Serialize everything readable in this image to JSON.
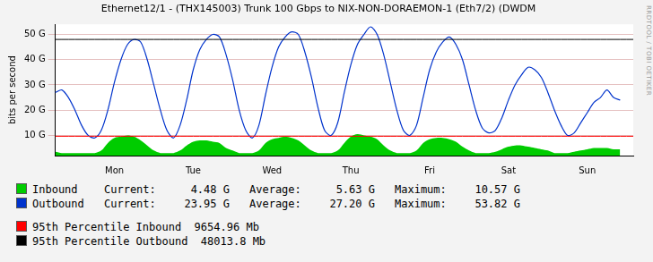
{
  "chart_data": {
    "type": "line",
    "title": "Ethernet12/1 - (THX145003) Trunk 100 Gbps to NIX-NON-DORAEMON-1 (Eth7/2) (DWDM",
    "y_label": "bits per second",
    "watermark": "RRDTOOL / TOBI OETIKER",
    "categories": [
      null,
      null,
      null,
      null,
      null,
      null,
      null,
      null,
      null,
      "Mon",
      null,
      null,
      null,
      null,
      null,
      null,
      null,
      null,
      null,
      null,
      null,
      "Tue",
      null,
      null,
      null,
      null,
      null,
      null,
      null,
      null,
      null,
      null,
      null,
      "Wed",
      null,
      null,
      null,
      null,
      null,
      null,
      null,
      null,
      null,
      null,
      null,
      "Thu",
      null,
      null,
      null,
      null,
      null,
      null,
      null,
      null,
      null,
      null,
      null,
      "Fri",
      null,
      null,
      null,
      null,
      null,
      null,
      null,
      null,
      null,
      null,
      null,
      "Sat",
      null,
      null,
      null,
      null,
      null,
      null,
      null,
      null,
      null,
      null,
      null,
      "Sun",
      null,
      null,
      null,
      null,
      null,
      null,
      null
    ],
    "series": [
      {
        "name": "Inbound",
        "type": "area",
        "color": "#00cc00",
        "values": [
          3500000000.0,
          3000000000.0,
          3000000000.0,
          3000000000.0,
          3000000000.0,
          3000000000.0,
          3000000000.0,
          4000000000.0,
          7000000000.0,
          9000000000.0,
          9500000000.0,
          10000000000.0,
          9500000000.0,
          8000000000.0,
          6000000000.0,
          4000000000.0,
          3000000000.0,
          3000000000.0,
          3000000000.0,
          4000000000.0,
          6000000000.0,
          7500000000.0,
          8000000000.0,
          8000000000.0,
          7500000000.0,
          7000000000.0,
          5000000000.0,
          4000000000.0,
          3000000000.0,
          3000000000.0,
          3000000000.0,
          4000000000.0,
          7000000000.0,
          8500000000.0,
          9000000000.0,
          9500000000.0,
          9000000000.0,
          8000000000.0,
          6000000000.0,
          4000000000.0,
          3000000000.0,
          3000000000.0,
          3000000000.0,
          4000000000.0,
          7000000000.0,
          9500000000.0,
          10500000000.0,
          10000000000.0,
          9500000000.0,
          8500000000.0,
          6000000000.0,
          4000000000.0,
          3000000000.0,
          3000000000.0,
          3000000000.0,
          4000000000.0,
          7000000000.0,
          8500000000.0,
          9000000000.0,
          9000000000.0,
          8500000000.0,
          7500000000.0,
          5500000000.0,
          4000000000.0,
          3000000000.0,
          3000000000.0,
          3000000000.0,
          3500000000.0,
          4500000000.0,
          5500000000.0,
          6000000000.0,
          6000000000.0,
          5500000000.0,
          5000000000.0,
          4500000000.0,
          4000000000.0,
          3000000000.0,
          3000000000.0,
          3000000000.0,
          3500000000.0,
          4000000000.0,
          4500000000.0,
          5000000000.0,
          5000000000.0,
          5000000000.0,
          4500000000.0,
          4500000000.0,
          null,
          null
        ],
        "stats": [
          {
            "label": "Current:",
            "value": 4480000000.0,
            "text": "4.48 G"
          },
          {
            "label": "Average:",
            "value": 5630000000.0,
            "text": "5.63 G"
          },
          {
            "label": "Maximum:",
            "value": 10570000000.0,
            "text": "10.57 G"
          }
        ]
      },
      {
        "name": "Outbound",
        "type": "line",
        "color": "#0033cc",
        "values": [
          27000000000.0,
          28000000000.0,
          25000000000.0,
          20000000000.0,
          14000000000.0,
          10000000000.0,
          9000000000.0,
          12000000000.0,
          20000000000.0,
          31000000000.0,
          40000000000.0,
          46000000000.0,
          48000000000.0,
          47000000000.0,
          40000000000.0,
          30000000000.0,
          20000000000.0,
          12000000000.0,
          9000000000.0,
          14000000000.0,
          24000000000.0,
          36000000000.0,
          44000000000.0,
          48000000000.0,
          50000000000.0,
          49000000000.0,
          42000000000.0,
          32000000000.0,
          20000000000.0,
          12000000000.0,
          9000000000.0,
          14000000000.0,
          26000000000.0,
          37000000000.0,
          45000000000.0,
          49000000000.0,
          51000000000.0,
          50000000000.0,
          43000000000.0,
          33000000000.0,
          21000000000.0,
          12000000000.0,
          10000000000.0,
          15000000000.0,
          27000000000.0,
          38000000000.0,
          46000000000.0,
          50000000000.0,
          53000000000.0,
          50000000000.0,
          42000000000.0,
          31000000000.0,
          20000000000.0,
          12000000000.0,
          10000000000.0,
          14000000000.0,
          25000000000.0,
          36000000000.0,
          43000000000.0,
          47000000000.0,
          49000000000.0,
          46000000000.0,
          40000000000.0,
          30000000000.0,
          20000000000.0,
          13000000000.0,
          11000000000.0,
          12000000000.0,
          17000000000.0,
          24000000000.0,
          30000000000.0,
          34000000000.0,
          37000000000.0,
          36000000000.0,
          33000000000.0,
          27000000000.0,
          20000000000.0,
          14000000000.0,
          10000000000.0,
          11000000000.0,
          15000000000.0,
          19000000000.0,
          23000000000.0,
          25000000000.0,
          28000000000.0,
          25000000000.0,
          24000000000.0,
          null,
          null
        ],
        "stats": [
          {
            "label": "Current:",
            "value": 23950000000.0,
            "text": "23.95 G"
          },
          {
            "label": "Average:",
            "value": 27200000000.0,
            "text": "27.20 G"
          },
          {
            "label": "Maximum:",
            "value": 53820000000.0,
            "text": "53.82 G"
          }
        ]
      }
    ],
    "reference_lines": [
      {
        "name": "95th Percentile Inbound",
        "value": 9654960000,
        "label": "9654.96 Mb",
        "color": "#ff0000"
      },
      {
        "name": "95th Percentile Outbound",
        "value": 48013800000,
        "label": "48013.8 Mb",
        "color": "#000000"
      }
    ],
    "ylim": [
      2000000000,
      54000000000
    ],
    "yticks": [
      {
        "value": 10000000000,
        "label": "10 G"
      },
      {
        "value": 20000000000,
        "label": "20 G"
      },
      {
        "value": 30000000000,
        "label": "30 G"
      },
      {
        "value": 40000000000,
        "label": "40 G"
      },
      {
        "value": 50000000000,
        "label": "50 G"
      }
    ],
    "grid": true,
    "legend": "bottom"
  }
}
